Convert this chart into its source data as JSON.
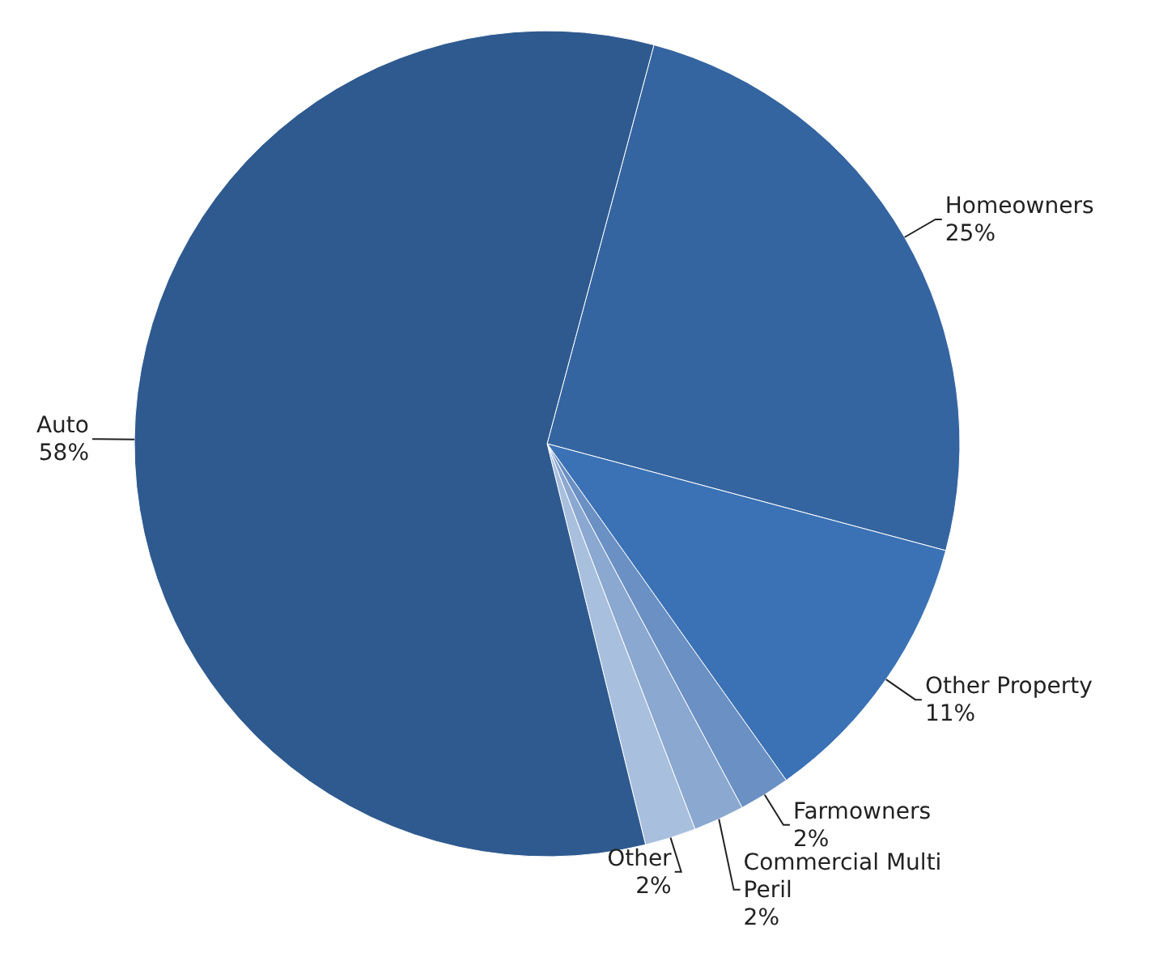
{
  "chart_data": {
    "type": "pie",
    "categories": [
      "Homeowners",
      "Other Property",
      "Farmowners",
      "Commercial Multi Peril",
      "Other",
      "Auto"
    ],
    "values": [
      25,
      11,
      2,
      2,
      2,
      58
    ],
    "colors": [
      "#3565a0",
      "#3b72b5",
      "#6a90c4",
      "#8aa8d0",
      "#a8bfdd",
      "#2e5a8f"
    ],
    "value_labels": [
      "25%",
      "11%",
      "2%",
      "2%",
      "2%",
      "58%"
    ]
  }
}
